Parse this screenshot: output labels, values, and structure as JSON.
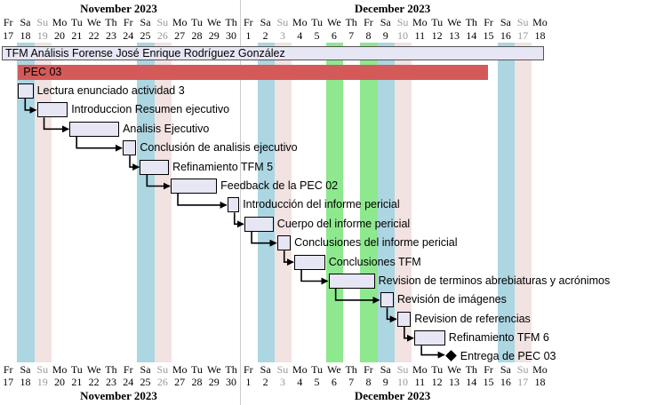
{
  "timeline": {
    "months": [
      {
        "label": "November 2023",
        "start_day_index": 0
      },
      {
        "label": "December 2023",
        "start_day_index": 14
      }
    ],
    "days": [
      {
        "dow": "Fr",
        "num": "17"
      },
      {
        "dow": "Sa",
        "num": "18"
      },
      {
        "dow": "Su",
        "num": "19"
      },
      {
        "dow": "Mo",
        "num": "20"
      },
      {
        "dow": "Tu",
        "num": "21"
      },
      {
        "dow": "We",
        "num": "22"
      },
      {
        "dow": "Th",
        "num": "23"
      },
      {
        "dow": "Fr",
        "num": "24"
      },
      {
        "dow": "Sa",
        "num": "25"
      },
      {
        "dow": "Su",
        "num": "26"
      },
      {
        "dow": "Mo",
        "num": "27"
      },
      {
        "dow": "Tu",
        "num": "28"
      },
      {
        "dow": "We",
        "num": "29"
      },
      {
        "dow": "Th",
        "num": "30"
      },
      {
        "dow": "Fr",
        "num": "1"
      },
      {
        "dow": "Sa",
        "num": "2"
      },
      {
        "dow": "Su",
        "num": "3"
      },
      {
        "dow": "Mo",
        "num": "4"
      },
      {
        "dow": "Tu",
        "num": "5"
      },
      {
        "dow": "We",
        "num": "6"
      },
      {
        "dow": "Th",
        "num": "7"
      },
      {
        "dow": "Fr",
        "num": "8"
      },
      {
        "dow": "Sa",
        "num": "9"
      },
      {
        "dow": "Su",
        "num": "10"
      },
      {
        "dow": "Mo",
        "num": "11"
      },
      {
        "dow": "Tu",
        "num": "12"
      },
      {
        "dow": "We",
        "num": "13"
      },
      {
        "dow": "Th",
        "num": "14"
      },
      {
        "dow": "Fr",
        "num": "15"
      },
      {
        "dow": "Sa",
        "num": "16"
      },
      {
        "dow": "Su",
        "num": "17"
      },
      {
        "dow": "Mo",
        "num": "18"
      }
    ],
    "saturday_indices": [
      1,
      8,
      15,
      22,
      29
    ],
    "sunday_indices": [
      2,
      9,
      16,
      23,
      30
    ],
    "highlight_indices": [
      19,
      21
    ]
  },
  "colors": {
    "saturday": "#acd6e2",
    "sunday": "#f2e2e2",
    "highlight": "#8ee88e",
    "task_fill": "#e6e6f4",
    "summary_fill": "#d45a5a",
    "project_fill": "#e6e6f4"
  },
  "project": {
    "label": "TFM Análisis Forense José Enrique Rodríguez González",
    "start": 0,
    "end": 31.6
  },
  "summary": {
    "label": "PEC 03",
    "start": 1,
    "end": 28.4
  },
  "tasks": [
    {
      "label": "Lectura enunciado actividad 3",
      "start": 1,
      "end": 2
    },
    {
      "label": "Introduccion Resumen ejecutivo",
      "start": 2.1,
      "end": 4
    },
    {
      "label": "Analisis Ejecutivo",
      "start": 4,
      "end": 7
    },
    {
      "label": "Conclusión de analisis ejecutivo",
      "start": 7.1,
      "end": 8
    },
    {
      "label": "Refinamiento TFM 5",
      "start": 8.1,
      "end": 9.9
    },
    {
      "label": "Feedback de la PEC 02",
      "start": 9.9,
      "end": 12.7
    },
    {
      "label": "Introducción del informe pericial",
      "start": 13.2,
      "end": 14
    },
    {
      "label": "Cuerpo del informe pericial",
      "start": 14.2,
      "end": 16
    },
    {
      "label": "Conclusiones del informe pericial",
      "start": 16.1,
      "end": 17
    },
    {
      "label": "Conclusiones TFM",
      "start": 17.1,
      "end": 19
    },
    {
      "label": "Revision de terminos abrebiaturas y acrónimos",
      "start": 19.1,
      "end": 21.9
    },
    {
      "label": "Revisión de imágenes",
      "start": 22.1,
      "end": 23
    },
    {
      "label": "Revision de referencias",
      "start": 23.1,
      "end": 24
    },
    {
      "label": "Refinamiento TFM 6",
      "start": 24.1,
      "end": 26
    }
  ],
  "milestone": {
    "label": "Entrega de PEC 03",
    "at": 26
  }
}
